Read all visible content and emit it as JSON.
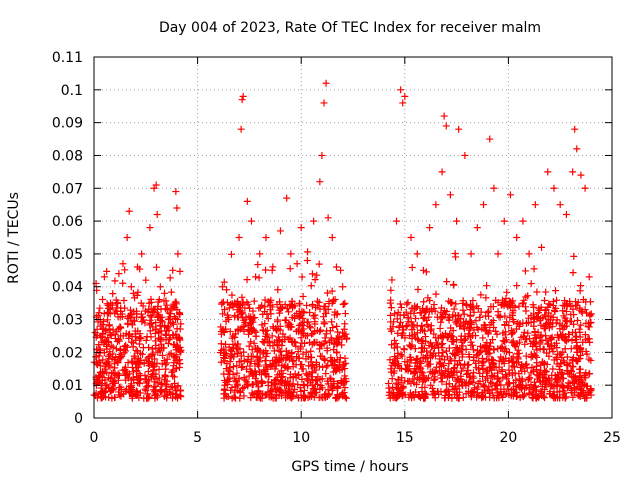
{
  "chart_data": {
    "type": "scatter",
    "title": "Day 004 of 2023, Rate Of TEC Index for receiver malm",
    "xlabel": "GPS time / hours",
    "ylabel": "ROTI / TECUs",
    "xlim": [
      0,
      25
    ],
    "ylim": [
      0,
      0.11
    ],
    "xticks": [
      "0",
      "5",
      "10",
      "15",
      "20",
      "25"
    ],
    "yticks": [
      "0",
      "0.01",
      "0.02",
      "0.03",
      "0.04",
      "0.05",
      "0.06",
      "0.07",
      "0.08",
      "0.09",
      "0.1",
      "0.11"
    ],
    "grid": true,
    "marker": "+",
    "series_color": "#ff0000",
    "data_gaps_hours": [
      [
        4.2,
        6.1
      ],
      [
        12.2,
        14.2
      ]
    ],
    "series": [
      {
        "x": [
          0.1,
          0.3,
          0.5,
          0.8,
          1.0,
          1.2,
          1.4,
          1.6,
          1.7,
          1.8,
          1.9,
          2.1,
          2.3,
          2.5,
          2.7,
          2.9,
          3.0,
          3.05,
          3.2,
          3.4,
          3.6,
          3.8,
          3.95,
          4.0,
          4.05,
          6.2,
          6.5,
          6.8,
          7.0,
          7.1,
          7.15,
          7.2,
          7.4,
          7.6,
          7.8,
          8.0,
          8.3,
          8.6,
          9.0,
          9.3,
          9.5,
          9.8,
          10.0,
          10.3,
          10.6,
          10.9,
          11.0,
          11.1,
          11.2,
          11.3,
          11.5,
          11.7,
          11.9,
          12.0,
          14.3,
          14.6,
          14.8,
          14.9,
          15.0,
          15.3,
          15.6,
          15.9,
          16.2,
          16.5,
          16.8,
          16.9,
          17.0,
          17.2,
          17.5,
          17.6,
          17.9,
          18.2,
          18.5,
          18.8,
          19.1,
          19.3,
          19.5,
          19.8,
          20.1,
          20.4,
          20.7,
          21.0,
          21.3,
          21.6,
          21.9,
          22.2,
          22.5,
          22.8,
          23.1,
          23.2,
          23.3,
          23.5,
          23.7,
          23.9
        ],
        "y": [
          0.041,
          0.03,
          0.043,
          0.035,
          0.032,
          0.044,
          0.047,
          0.055,
          0.063,
          0.04,
          0.038,
          0.046,
          0.05,
          0.042,
          0.058,
          0.07,
          0.071,
          0.062,
          0.04,
          0.038,
          0.03,
          0.045,
          0.069,
          0.064,
          0.05,
          0.04,
          0.03,
          0.035,
          0.055,
          0.088,
          0.097,
          0.098,
          0.066,
          0.06,
          0.043,
          0.05,
          0.055,
          0.045,
          0.057,
          0.067,
          0.05,
          0.047,
          0.058,
          0.048,
          0.06,
          0.072,
          0.08,
          0.096,
          0.102,
          0.061,
          0.055,
          0.046,
          0.045,
          0.04,
          0.035,
          0.06,
          0.1,
          0.096,
          0.098,
          0.055,
          0.05,
          0.045,
          0.058,
          0.065,
          0.075,
          0.092,
          0.089,
          0.068,
          0.06,
          0.088,
          0.08,
          0.05,
          0.058,
          0.065,
          0.085,
          0.07,
          0.05,
          0.06,
          0.068,
          0.055,
          0.06,
          0.05,
          0.065,
          0.052,
          0.075,
          0.07,
          0.065,
          0.062,
          0.075,
          0.088,
          0.082,
          0.074,
          0.07,
          0.043
        ]
      }
    ]
  }
}
